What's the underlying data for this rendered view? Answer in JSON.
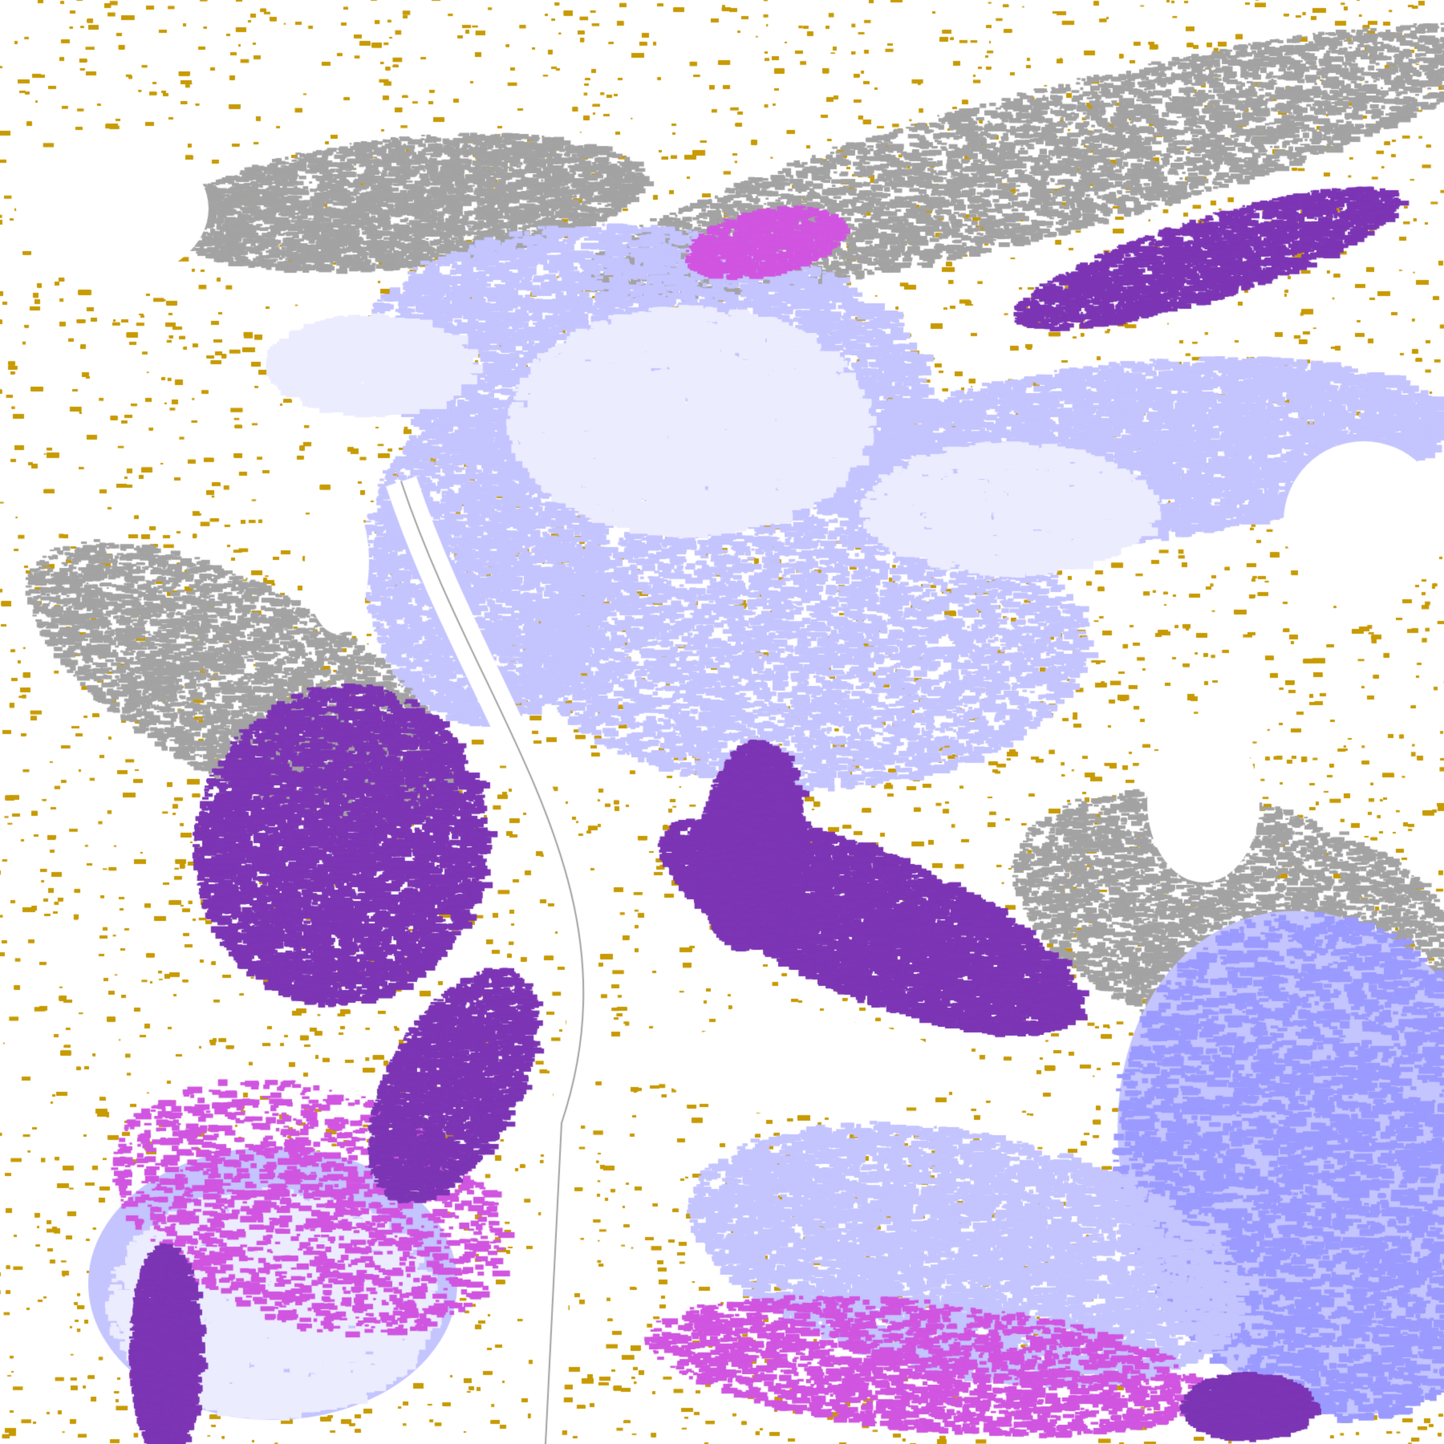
{
  "map": {
    "kind": "classified satellite cloud-type raster",
    "palette": {
      "clear": "#ffffff",
      "gold": "#c89a00",
      "gray": "#a3a3a3",
      "light_gray": "#c0c0c0",
      "lavender": "#c4c4ff",
      "pale_lavender": "#ececff",
      "periwinkle": "#9a9aff",
      "purple": "#7c35b4",
      "magenta": "#d055e0"
    }
  }
}
